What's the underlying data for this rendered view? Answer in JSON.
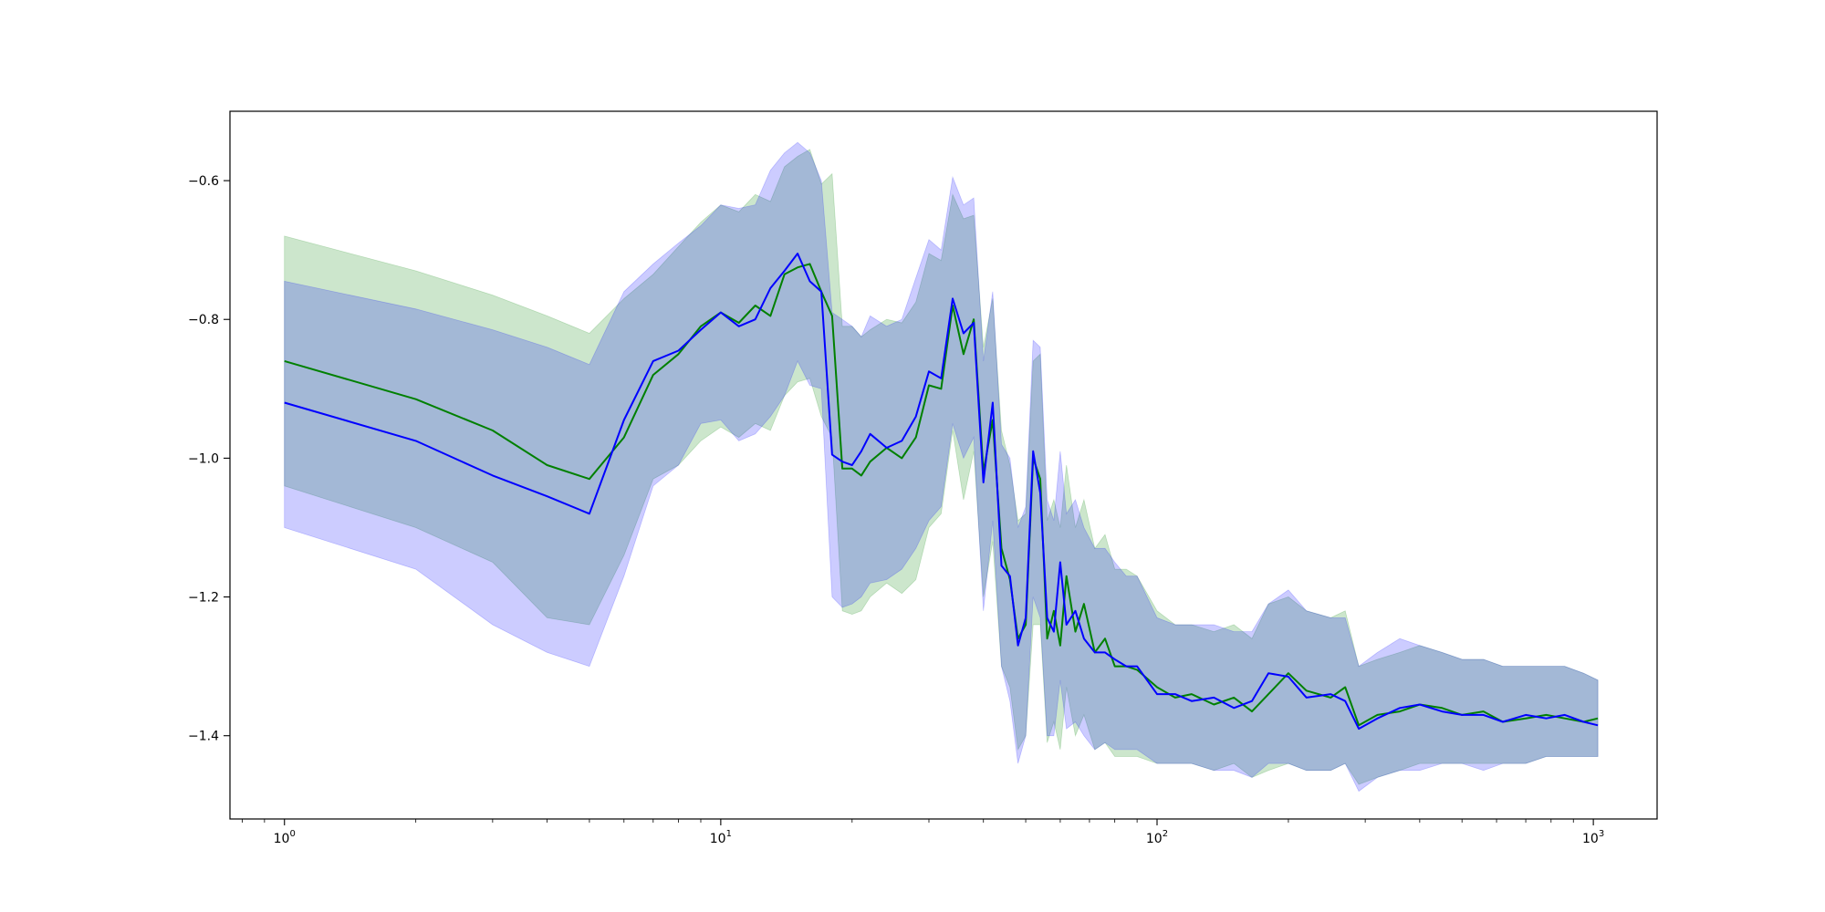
{
  "chart_data": {
    "type": "line",
    "title": "",
    "xlabel": "",
    "ylabel": "",
    "xscale": "log",
    "xlim": [
      0.75,
      1400
    ],
    "ylim": [
      -1.52,
      -0.5
    ],
    "grid": false,
    "legend": "none",
    "x_ticks": [
      {
        "value": 1,
        "base": "10",
        "exp": "0"
      },
      {
        "value": 10,
        "base": "10",
        "exp": "1"
      },
      {
        "value": 100,
        "base": "10",
        "exp": "2"
      },
      {
        "value": 1000,
        "base": "10",
        "exp": "3"
      }
    ],
    "y_ticks": [
      {
        "value": -0.6,
        "label": "−0.6"
      },
      {
        "value": -0.8,
        "label": "−0.8"
      },
      {
        "value": -1.0,
        "label": "−1.0"
      },
      {
        "value": -1.2,
        "label": "−1.2"
      },
      {
        "value": -1.4,
        "label": "−1.4"
      }
    ],
    "series": [
      {
        "color": "#008000",
        "band_color": "#008000",
        "band_opacity": 0.2,
        "points": [
          [
            1,
            -0.86,
            -1.04,
            -0.68
          ],
          [
            2,
            -0.915,
            -1.1,
            -0.73
          ],
          [
            3,
            -0.96,
            -1.15,
            -0.765
          ],
          [
            4,
            -1.01,
            -1.23,
            -0.795
          ],
          [
            5,
            -1.03,
            -1.24,
            -0.82
          ],
          [
            6,
            -0.97,
            -1.14,
            -0.77
          ],
          [
            7,
            -0.88,
            -1.03,
            -0.735
          ],
          [
            8,
            -0.85,
            -1.01,
            -0.695
          ],
          [
            9,
            -0.81,
            -0.975,
            -0.66
          ],
          [
            10,
            -0.79,
            -0.955,
            -0.635
          ],
          [
            11,
            -0.805,
            -0.97,
            -0.645
          ],
          [
            12,
            -0.78,
            -0.95,
            -0.62
          ],
          [
            13,
            -0.795,
            -0.96,
            -0.63
          ],
          [
            14,
            -0.735,
            -0.91,
            -0.58
          ],
          [
            15,
            -0.725,
            -0.89,
            -0.565
          ],
          [
            16,
            -0.72,
            -0.885,
            -0.555
          ],
          [
            17,
            -0.76,
            -0.94,
            -0.605
          ],
          [
            18,
            -0.795,
            -0.97,
            -0.59
          ],
          [
            19,
            -1.015,
            -1.22,
            -0.81
          ],
          [
            20,
            -1.015,
            -1.225,
            -0.81
          ],
          [
            21,
            -1.025,
            -1.22,
            -0.825
          ],
          [
            22,
            -1.005,
            -1.2,
            -0.815
          ],
          [
            24,
            -0.985,
            -1.18,
            -0.8
          ],
          [
            26,
            -1.0,
            -1.195,
            -0.805
          ],
          [
            28,
            -0.97,
            -1.175,
            -0.775
          ],
          [
            30,
            -0.895,
            -1.1,
            -0.705
          ],
          [
            32,
            -0.9,
            -1.08,
            -0.715
          ],
          [
            34,
            -0.78,
            -0.96,
            -0.62
          ],
          [
            36,
            -0.85,
            -1.06,
            -0.655
          ],
          [
            38,
            -0.8,
            -0.99,
            -0.65
          ],
          [
            40,
            -1.02,
            -1.2,
            -0.84
          ],
          [
            42,
            -0.945,
            -1.12,
            -0.77
          ],
          [
            44,
            -1.13,
            -1.3,
            -0.96
          ],
          [
            46,
            -1.175,
            -1.33,
            -1.01
          ],
          [
            48,
            -1.26,
            -1.42,
            -1.09
          ],
          [
            50,
            -1.24,
            -1.4,
            -1.08
          ],
          [
            52,
            -1.0,
            -1.24,
            -0.86
          ],
          [
            54,
            -1.03,
            -1.24,
            -0.85
          ],
          [
            56,
            -1.26,
            -1.41,
            -1.09
          ],
          [
            58,
            -1.22,
            -1.38,
            -1.06
          ],
          [
            60,
            -1.27,
            -1.42,
            -1.1
          ],
          [
            62,
            -1.17,
            -1.33,
            -1.01
          ],
          [
            65,
            -1.25,
            -1.4,
            -1.1
          ],
          [
            68,
            -1.21,
            -1.37,
            -1.06
          ],
          [
            72,
            -1.28,
            -1.42,
            -1.13
          ],
          [
            76,
            -1.26,
            -1.41,
            -1.11
          ],
          [
            80,
            -1.3,
            -1.43,
            -1.16
          ],
          [
            85,
            -1.3,
            -1.43,
            -1.16
          ],
          [
            90,
            -1.305,
            -1.43,
            -1.17
          ],
          [
            100,
            -1.33,
            -1.44,
            -1.22
          ],
          [
            110,
            -1.345,
            -1.44,
            -1.24
          ],
          [
            120,
            -1.34,
            -1.44,
            -1.24
          ],
          [
            135,
            -1.355,
            -1.45,
            -1.25
          ],
          [
            150,
            -1.345,
            -1.44,
            -1.24
          ],
          [
            165,
            -1.365,
            -1.46,
            -1.26
          ],
          [
            180,
            -1.34,
            -1.45,
            -1.21
          ],
          [
            200,
            -1.31,
            -1.44,
            -1.2
          ],
          [
            220,
            -1.335,
            -1.45,
            -1.22
          ],
          [
            250,
            -1.345,
            -1.45,
            -1.23
          ],
          [
            270,
            -1.33,
            -1.44,
            -1.22
          ],
          [
            290,
            -1.385,
            -1.47,
            -1.3
          ],
          [
            320,
            -1.37,
            -1.46,
            -1.29
          ],
          [
            360,
            -1.365,
            -1.45,
            -1.28
          ],
          [
            400,
            -1.355,
            -1.44,
            -1.27
          ],
          [
            450,
            -1.36,
            -1.44,
            -1.28
          ],
          [
            500,
            -1.37,
            -1.44,
            -1.29
          ],
          [
            560,
            -1.365,
            -1.44,
            -1.29
          ],
          [
            620,
            -1.38,
            -1.44,
            -1.3
          ],
          [
            700,
            -1.375,
            -1.44,
            -1.3
          ],
          [
            780,
            -1.37,
            -1.43,
            -1.3
          ],
          [
            860,
            -1.375,
            -1.43,
            -1.3
          ],
          [
            950,
            -1.38,
            -1.43,
            -1.31
          ],
          [
            1024,
            -1.375,
            -1.43,
            -1.32
          ]
        ]
      },
      {
        "color": "#0000ff",
        "band_color": "#0000ff",
        "band_opacity": 0.2,
        "points": [
          [
            1,
            -0.92,
            -1.1,
            -0.745
          ],
          [
            2,
            -0.975,
            -1.16,
            -0.785
          ],
          [
            3,
            -1.025,
            -1.24,
            -0.815
          ],
          [
            4,
            -1.055,
            -1.28,
            -0.84
          ],
          [
            5,
            -1.08,
            -1.3,
            -0.865
          ],
          [
            6,
            -0.945,
            -1.17,
            -0.76
          ],
          [
            7,
            -0.86,
            -1.04,
            -0.72
          ],
          [
            8,
            -0.845,
            -1.01,
            -0.69
          ],
          [
            9,
            -0.815,
            -0.95,
            -0.665
          ],
          [
            10,
            -0.79,
            -0.945,
            -0.635
          ],
          [
            11,
            -0.81,
            -0.975,
            -0.64
          ],
          [
            12,
            -0.8,
            -0.965,
            -0.635
          ],
          [
            13,
            -0.755,
            -0.94,
            -0.585
          ],
          [
            14,
            -0.73,
            -0.91,
            -0.56
          ],
          [
            15,
            -0.705,
            -0.86,
            -0.545
          ],
          [
            16,
            -0.745,
            -0.895,
            -0.56
          ],
          [
            17,
            -0.76,
            -0.9,
            -0.6
          ],
          [
            18,
            -0.995,
            -1.2,
            -0.79
          ],
          [
            19,
            -1.005,
            -1.215,
            -0.8
          ],
          [
            20,
            -1.01,
            -1.21,
            -0.81
          ],
          [
            21,
            -0.99,
            -1.2,
            -0.825
          ],
          [
            22,
            -0.965,
            -1.18,
            -0.795
          ],
          [
            24,
            -0.985,
            -1.175,
            -0.81
          ],
          [
            26,
            -0.975,
            -1.16,
            -0.8
          ],
          [
            28,
            -0.94,
            -1.13,
            -0.74
          ],
          [
            30,
            -0.875,
            -1.09,
            -0.685
          ],
          [
            32,
            -0.885,
            -1.07,
            -0.7
          ],
          [
            34,
            -0.77,
            -0.95,
            -0.595
          ],
          [
            36,
            -0.82,
            -1.0,
            -0.635
          ],
          [
            38,
            -0.805,
            -0.97,
            -0.625
          ],
          [
            40,
            -1.035,
            -1.22,
            -0.86
          ],
          [
            42,
            -0.92,
            -1.09,
            -0.76
          ],
          [
            44,
            -1.155,
            -1.3,
            -0.98
          ],
          [
            46,
            -1.17,
            -1.35,
            -1.0
          ],
          [
            48,
            -1.27,
            -1.44,
            -1.1
          ],
          [
            50,
            -1.23,
            -1.4,
            -1.07
          ],
          [
            52,
            -0.99,
            -1.2,
            -0.83
          ],
          [
            54,
            -1.05,
            -1.23,
            -0.84
          ],
          [
            56,
            -1.23,
            -1.4,
            -1.06
          ],
          [
            58,
            -1.25,
            -1.4,
            -1.09
          ],
          [
            60,
            -1.15,
            -1.32,
            -0.99
          ],
          [
            62,
            -1.24,
            -1.39,
            -1.08
          ],
          [
            65,
            -1.22,
            -1.38,
            -1.06
          ],
          [
            68,
            -1.26,
            -1.4,
            -1.1
          ],
          [
            72,
            -1.28,
            -1.42,
            -1.13
          ],
          [
            76,
            -1.28,
            -1.41,
            -1.13
          ],
          [
            80,
            -1.29,
            -1.42,
            -1.15
          ],
          [
            85,
            -1.3,
            -1.42,
            -1.17
          ],
          [
            90,
            -1.3,
            -1.42,
            -1.17
          ],
          [
            100,
            -1.34,
            -1.44,
            -1.23
          ],
          [
            110,
            -1.34,
            -1.44,
            -1.24
          ],
          [
            120,
            -1.35,
            -1.44,
            -1.24
          ],
          [
            135,
            -1.345,
            -1.45,
            -1.24
          ],
          [
            150,
            -1.36,
            -1.45,
            -1.25
          ],
          [
            165,
            -1.35,
            -1.46,
            -1.25
          ],
          [
            180,
            -1.31,
            -1.44,
            -1.21
          ],
          [
            200,
            -1.315,
            -1.44,
            -1.19
          ],
          [
            220,
            -1.345,
            -1.45,
            -1.22
          ],
          [
            250,
            -1.34,
            -1.45,
            -1.23
          ],
          [
            270,
            -1.35,
            -1.44,
            -1.23
          ],
          [
            290,
            -1.39,
            -1.48,
            -1.3
          ],
          [
            320,
            -1.375,
            -1.46,
            -1.28
          ],
          [
            360,
            -1.36,
            -1.45,
            -1.26
          ],
          [
            400,
            -1.355,
            -1.45,
            -1.27
          ],
          [
            450,
            -1.365,
            -1.44,
            -1.28
          ],
          [
            500,
            -1.37,
            -1.44,
            -1.29
          ],
          [
            560,
            -1.37,
            -1.45,
            -1.29
          ],
          [
            620,
            -1.38,
            -1.44,
            -1.3
          ],
          [
            700,
            -1.37,
            -1.44,
            -1.3
          ],
          [
            780,
            -1.375,
            -1.43,
            -1.3
          ],
          [
            860,
            -1.37,
            -1.43,
            -1.3
          ],
          [
            950,
            -1.38,
            -1.43,
            -1.31
          ],
          [
            1024,
            -1.385,
            -1.43,
            -1.32
          ]
        ]
      }
    ]
  }
}
